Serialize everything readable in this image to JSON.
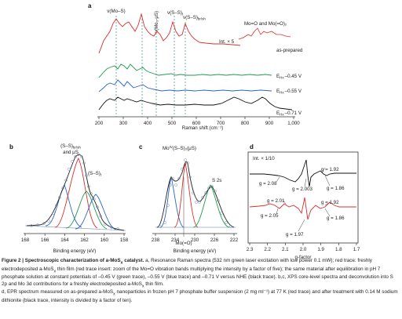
{
  "panels": {
    "a": {
      "label": "a",
      "xlabel": "Raman shift (cm⁻¹)",
      "xticks": [
        "200",
        "300",
        "400",
        "500",
        "600",
        "700",
        "800",
        "900",
        "1,000"
      ],
      "top_labels": [
        "ν(Mo–S)",
        "ν(Mo₃-μS)",
        "ν(S–S)",
        "ν(S–S)"
      ],
      "top_label_subs": [
        "",
        "",
        "t",
        "br/sh"
      ],
      "inset_text": "Mo=O and Mo(=O)₂",
      "inset_int": "Int. × 5",
      "traces": [
        "as-prepared",
        "E",
        "E",
        "E"
      ],
      "trace_subs": [
        "",
        "Hx",
        "Hx",
        "Hx"
      ],
      "trace_values": [
        "",
        "–0.45 V",
        "–0.55 V",
        "–0.71 V"
      ]
    },
    "b": {
      "label": "b",
      "xlabel": "Binding energy (eV)",
      "xticks": [
        "168",
        "166",
        "164",
        "162",
        "160",
        "158"
      ],
      "labels": [
        "(S–S)",
        "and μS",
        "(S–S)"
      ],
      "label_subs": [
        "br/sh",
        "",
        "t"
      ]
    },
    "c": {
      "label": "c",
      "xlabel": "Binding energy (eV)",
      "xticks": [
        "238",
        "234",
        "230",
        "226",
        "222"
      ],
      "title": "Mo",
      "title_sup": "IV",
      "title_rest": "(S–S)₂(μS)",
      "labels": [
        "S 2s",
        "Mo(=O)"
      ]
    },
    "d": {
      "label": "d",
      "xlabel": "g-factor",
      "xticks": [
        "2.3",
        "2.2",
        "2.1",
        "2.0",
        "1.9",
        "1.8",
        "1.7"
      ],
      "int_label": "Int. × 1/10",
      "g_black": [
        "g = 2.08",
        "g = 2.003",
        "g = 1.92",
        "g = 1.86"
      ],
      "g_red": [
        "g = 2.01",
        "g = 2.05",
        "g = 1.97",
        "g = 1.92",
        "g = 1.86"
      ]
    }
  },
  "caption": {
    "title": "Figure 2 | Spectroscopic characterization of a-MoS",
    "title_sub": "x",
    "title_end": " catalyst.",
    "a": " a, Resonance Raman spectra (532 nm green laser excitation with low power 0.1 mW); red trace: freshly electrodeposited a-MoS",
    "a_sub": "x",
    "a_rest": " thin film (red trace insert: zoom of the Mo=O vibration bands multiplying the intensity by a factor of five); the same material after equilibration in pH 7 phosphate solution at constant potentials of –0.45 V (green trace), –0.55 V (blue trace) and –0.71 V versus NHE (black trace).",
    "b": " b,c, XPS core-level spectra and deconvolution into S 2p and Mo 3d contributions for a freshly electrodeposited a-MoS",
    "b_sub": "x",
    "b_rest": " thin film.",
    "d": "d, EPR spectrum measured on as-prepared a-MoS",
    "d_sub": "x",
    "d_rest": " nanoparticles in frozen pH 7 phosphate buffer suspension (2 mg ml⁻¹) at 77 K (red trace) and after treatment with 0.14 M sodium dithionite (black trace, intensity is divided by a factor of ten)."
  },
  "chart_data": [
    {
      "type": "line",
      "panel": "a",
      "xlabel": "Raman shift (cm⁻¹)",
      "xlim": [
        200,
        1000
      ],
      "series": [
        {
          "name": "as-prepared",
          "color": "#d9302c"
        },
        {
          "name": "–0.45 V",
          "color": "#1f9d4a"
        },
        {
          "name": "–0.55 V",
          "color": "#2b64c8"
        },
        {
          "name": "–0.71 V",
          "color": "#111111"
        }
      ]
    },
    {
      "type": "line",
      "panel": "b",
      "xlabel": "Binding energy (eV)",
      "xlim": [
        168,
        158
      ]
    },
    {
      "type": "line",
      "panel": "c",
      "xlabel": "Binding energy (eV)",
      "xlim": [
        238,
        222
      ]
    },
    {
      "type": "line",
      "panel": "d",
      "xlabel": "g-factor",
      "xlim": [
        2.3,
        1.7
      ],
      "series": [
        {
          "name": "after dithionite (Int. × 1/10)",
          "color": "#111111"
        },
        {
          "name": "as-prepared",
          "color": "#d9302c"
        }
      ]
    }
  ]
}
